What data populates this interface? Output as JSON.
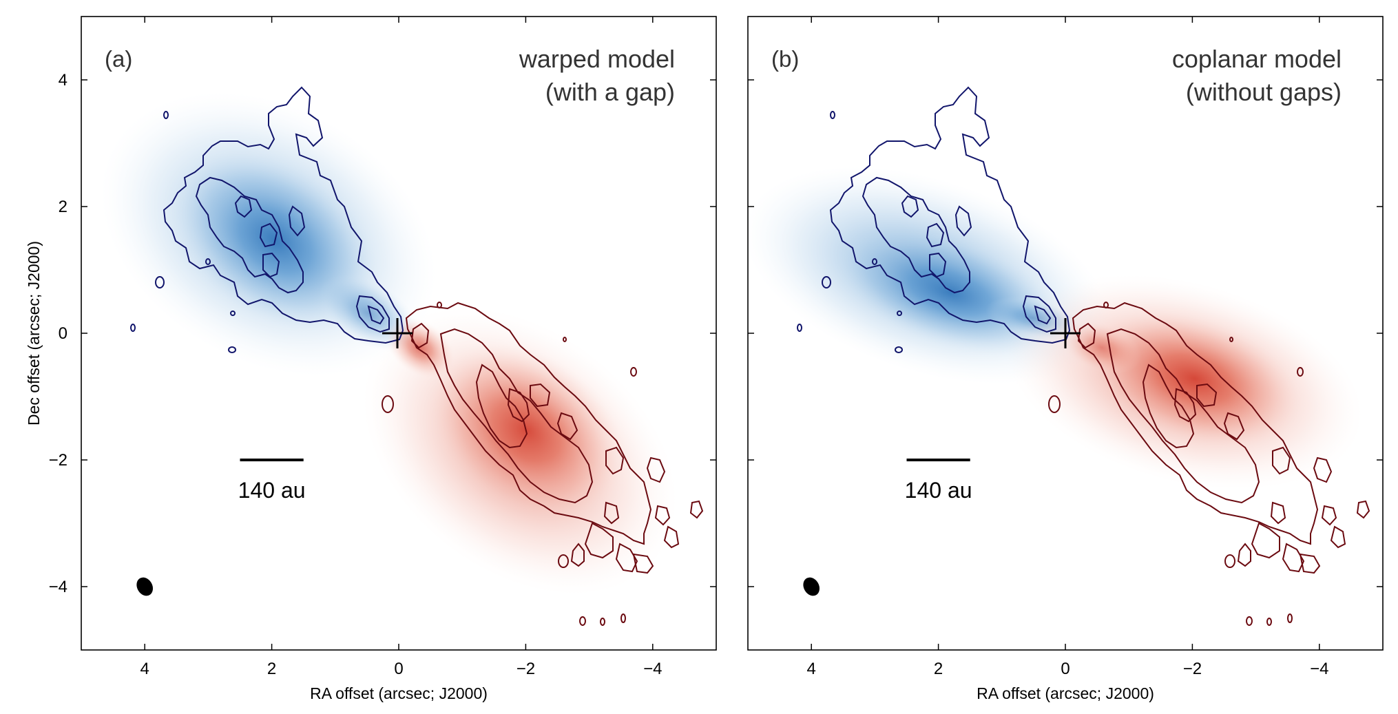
{
  "chart_data": [
    {
      "type": "contour_map",
      "panel_label": "(a)",
      "title_lines": [
        "warped model",
        "(with a gap)"
      ],
      "xlabel": "RA offset (arcsec; J2000)",
      "ylabel": "Dec offset (arcsec; J2000)",
      "xlim": [
        5,
        -5
      ],
      "ylim": [
        -5,
        5
      ],
      "xticks": [
        4,
        2,
        0,
        -2,
        -4
      ],
      "xtick_labels": [
        "4",
        "2",
        "0",
        "−2",
        "−4"
      ],
      "yticks": [
        4,
        2,
        0,
        -2,
        -4
      ],
      "ytick_labels": [
        "4",
        "2",
        "0",
        "−2",
        "−4"
      ],
      "scale_bar": {
        "label": "140 au",
        "x_from": 2.5,
        "x_to": 1.5,
        "y": -2
      },
      "beam": {
        "x": 4.0,
        "y": -4.0
      },
      "star_position": {
        "x": 0,
        "y": 0
      },
      "model_blue_lobe": {
        "center": [
          1.9,
          1.4
        ],
        "peak": [
          1.9,
          1.5
        ],
        "color": "#2b72b8"
      },
      "model_red_lobe": {
        "center": [
          -2.0,
          -1.8
        ],
        "peak": [
          -2.0,
          -1.5
        ],
        "color": "#d23a2a"
      },
      "contours": {
        "blue_color": "#11156b",
        "red_color": "#6b0a10"
      }
    },
    {
      "type": "contour_map",
      "panel_label": "(b)",
      "title_lines": [
        "coplanar model",
        "(without gaps)"
      ],
      "xlabel": "RA offset (arcsec; J2000)",
      "ylabel": "",
      "xlim": [
        5,
        -5
      ],
      "ylim": [
        -5,
        5
      ],
      "xticks": [
        4,
        2,
        0,
        -2,
        -4
      ],
      "xtick_labels": [
        "4",
        "2",
        "0",
        "−2",
        "−4"
      ],
      "yticks": [
        4,
        2,
        0,
        -2,
        -4
      ],
      "ytick_labels": [],
      "scale_bar": {
        "label": "140 au",
        "x_from": 2.5,
        "x_to": 1.5,
        "y": -2
      },
      "beam": {
        "x": 4.0,
        "y": -4.0
      },
      "star_position": {
        "x": 0,
        "y": 0
      },
      "model_blue_lobe": {
        "center": [
          2.0,
          0.5
        ],
        "peak": [
          1.7,
          0.5
        ],
        "color": "#2b72b8"
      },
      "model_red_lobe": {
        "center": [
          -2.0,
          -0.9
        ],
        "peak": [
          -1.9,
          -0.9
        ],
        "color": "#d23a2a"
      },
      "contours": {
        "blue_color": "#11156b",
        "red_color": "#6b0a10"
      }
    }
  ]
}
